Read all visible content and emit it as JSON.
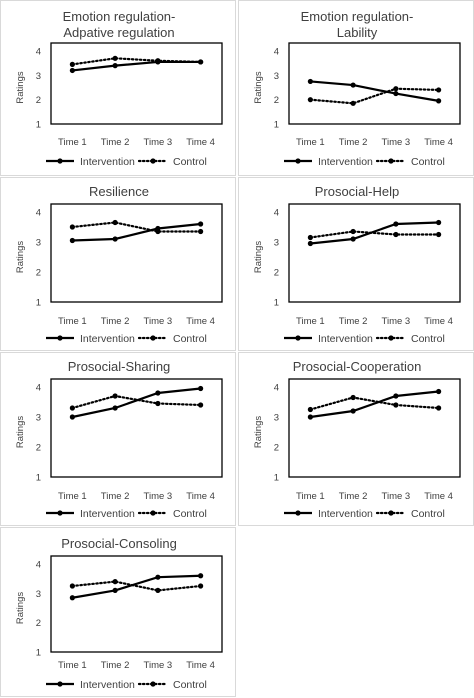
{
  "chart_data": [
    {
      "type": "line",
      "title_lines": [
        "Emotion regulation-",
        "Adpative regulation"
      ],
      "categories": [
        "Time 1",
        "Time 2",
        "Time 3",
        "Time 4"
      ],
      "ylabel": "Ratings",
      "ylim": [
        1,
        4
      ],
      "yticks": [
        1,
        2,
        3,
        4
      ],
      "legend_position": "bottom",
      "series": [
        {
          "name": "Intervention",
          "style": "solid",
          "values": [
            3.2,
            3.4,
            3.55,
            3.55
          ]
        },
        {
          "name": "Control",
          "style": "dotted",
          "values": [
            3.45,
            3.7,
            3.6,
            3.55
          ]
        }
      ]
    },
    {
      "type": "line",
      "title_lines": [
        "Emotion regulation-",
        "Lability"
      ],
      "categories": [
        "Time 1",
        "Time 2",
        "Time 3",
        "Time 4"
      ],
      "ylabel": "Ratings",
      "ylim": [
        1,
        4
      ],
      "yticks": [
        1,
        2,
        3,
        4
      ],
      "legend_position": "bottom",
      "series": [
        {
          "name": "Intervention",
          "style": "solid",
          "values": [
            2.75,
            2.6,
            2.25,
            1.95
          ]
        },
        {
          "name": "Control",
          "style": "dotted",
          "values": [
            2.0,
            1.85,
            2.45,
            2.4
          ]
        }
      ]
    },
    {
      "type": "line",
      "title_lines": [
        "Resilience"
      ],
      "categories": [
        "Time 1",
        "Time 2",
        "Time 3",
        "Time 4"
      ],
      "ylabel": "Ratings",
      "ylim": [
        1,
        4
      ],
      "yticks": [
        1,
        2,
        3,
        4
      ],
      "legend_position": "bottom",
      "series": [
        {
          "name": "Intervention",
          "style": "solid",
          "values": [
            3.05,
            3.1,
            3.45,
            3.6
          ]
        },
        {
          "name": "Control",
          "style": "dotted",
          "values": [
            3.5,
            3.65,
            3.35,
            3.35
          ]
        }
      ]
    },
    {
      "type": "line",
      "title_lines": [
        "Prosocial-Help"
      ],
      "categories": [
        "Time 1",
        "Time 2",
        "Time 3",
        "Time 4"
      ],
      "ylabel": "Ratings",
      "ylim": [
        1,
        4
      ],
      "yticks": [
        1,
        2,
        3,
        4
      ],
      "legend_position": "bottom",
      "series": [
        {
          "name": "Intervention",
          "style": "solid",
          "values": [
            2.95,
            3.1,
            3.6,
            3.65
          ]
        },
        {
          "name": "Control",
          "style": "dotted",
          "values": [
            3.15,
            3.35,
            3.25,
            3.25
          ]
        }
      ]
    },
    {
      "type": "line",
      "title_lines": [
        "Prosocial-Sharing"
      ],
      "categories": [
        "Time 1",
        "Time 2",
        "Time 3",
        "Time 4"
      ],
      "ylabel": "Ratings",
      "ylim": [
        1,
        4
      ],
      "yticks": [
        1,
        2,
        3,
        4
      ],
      "legend_position": "bottom",
      "series": [
        {
          "name": "Intervention",
          "style": "solid",
          "values": [
            3.0,
            3.3,
            3.8,
            3.95
          ]
        },
        {
          "name": "Control",
          "style": "dotted",
          "values": [
            3.3,
            3.7,
            3.45,
            3.4
          ]
        }
      ]
    },
    {
      "type": "line",
      "title_lines": [
        "Prosocial-Cooperation"
      ],
      "categories": [
        "Time 1",
        "Time 2",
        "Time 3",
        "Time 4"
      ],
      "ylabel": "Ratings",
      "ylim": [
        1,
        4
      ],
      "yticks": [
        1,
        2,
        3,
        4
      ],
      "legend_position": "bottom",
      "series": [
        {
          "name": "Intervention",
          "style": "solid",
          "values": [
            3.0,
            3.2,
            3.7,
            3.85
          ]
        },
        {
          "name": "Control",
          "style": "dotted",
          "values": [
            3.25,
            3.65,
            3.4,
            3.3
          ]
        }
      ]
    },
    {
      "type": "line",
      "title_lines": [
        "Prosocial-Consoling"
      ],
      "categories": [
        "Time 1",
        "Time 2",
        "Time 3",
        "Time 4"
      ],
      "ylabel": "Ratings",
      "ylim": [
        1,
        4
      ],
      "yticks": [
        1,
        2,
        3,
        4
      ],
      "legend_position": "bottom",
      "series": [
        {
          "name": "Intervention",
          "style": "solid",
          "values": [
            2.85,
            3.1,
            3.55,
            3.6
          ]
        },
        {
          "name": "Control",
          "style": "dotted",
          "values": [
            3.25,
            3.4,
            3.1,
            3.25
          ]
        }
      ]
    }
  ]
}
